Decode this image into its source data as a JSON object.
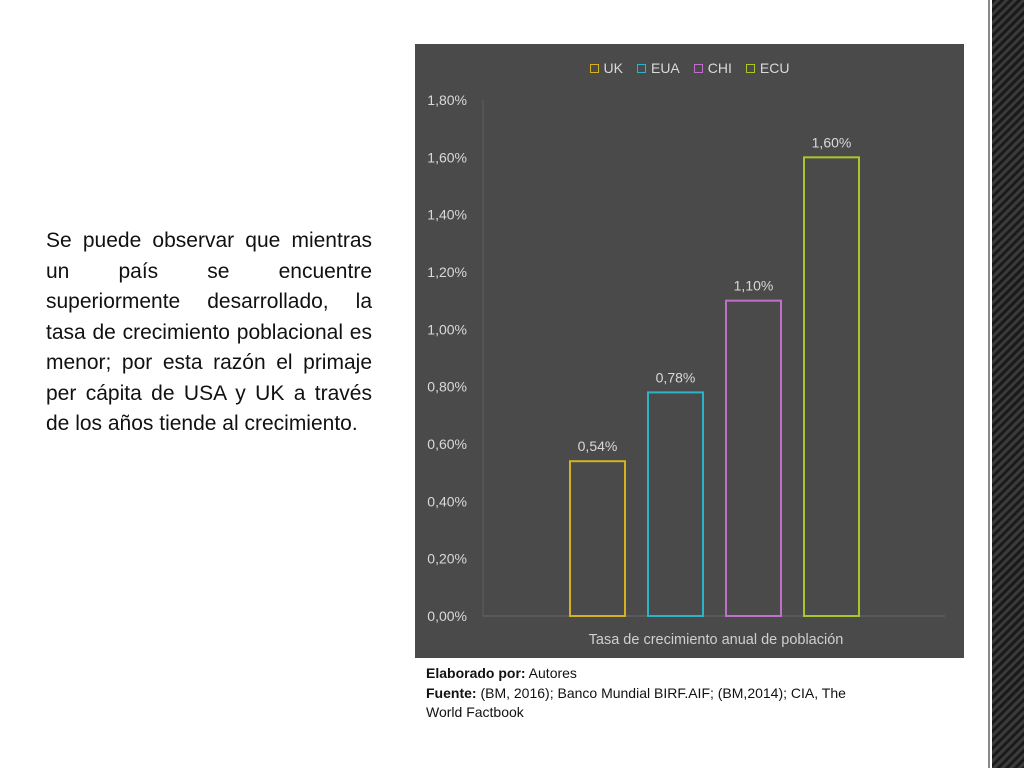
{
  "slide": {
    "body_text": "Se puede observar que mientras un país se encuentre superiormente desarrollado, la tasa de crecimiento poblacional es menor; por esta razón el primaje per cápita de USA y UK a través de los años tiende al crecimiento.",
    "source_author_label": "Elaborado por:",
    "source_author_value": " Autores",
    "source_fuente_label": "Fuente:",
    "source_fuente_value": " (BM, 2016); Banco Mundial BIRF.AIF; (BM,2014); CIA, The World Factbook"
  },
  "chart_data": {
    "type": "bar",
    "categories": [
      "Tasa de crecimiento anual de población"
    ],
    "series": [
      {
        "name": "UK",
        "values": [
          0.54
        ],
        "color": "#d4b21f",
        "label": "0,54%"
      },
      {
        "name": "EUA",
        "values": [
          0.78
        ],
        "color": "#2ab3c9",
        "label": "0,78%"
      },
      {
        "name": "CHI",
        "values": [
          1.1
        ],
        "color": "#c070c8",
        "label": "1,10%"
      },
      {
        "name": "ECU",
        "values": [
          1.6
        ],
        "color": "#a8c828",
        "label": "1,60%"
      }
    ],
    "y_ticks": [
      "0,00%",
      "0,20%",
      "0,40%",
      "0,60%",
      "0,80%",
      "1,00%",
      "1,20%",
      "1,40%",
      "1,60%",
      "1,80%"
    ],
    "ylim": [
      0,
      1.8
    ],
    "y_unit": "%",
    "grid": false,
    "legend_position": "top",
    "background": "#4a4a4a"
  }
}
